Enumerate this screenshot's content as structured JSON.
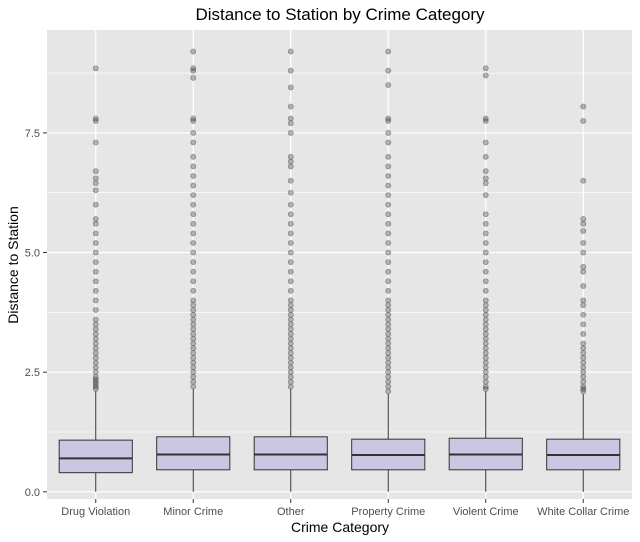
{
  "chart_data": {
    "type": "boxplot",
    "title": "Distance to Station by Crime Category",
    "xlabel": "Crime Category",
    "ylabel": "Distance to Station",
    "ylim": [
      -0.15,
      9.65
    ],
    "yticks": [
      0.0,
      2.5,
      5.0,
      7.5
    ],
    "ytick_labels": [
      "0.0",
      "2.5",
      "5.0",
      "7.5"
    ],
    "grid": true,
    "colors": {
      "panel": "#e6e6e6",
      "grid": "#ffffff",
      "box_fill": "#cbc7e3",
      "box_stroke": "#333333",
      "outlier": "#333333"
    },
    "categories": [
      "Drug Violation",
      "Minor Crime",
      "Other",
      "Property Crime",
      "Violent Crime",
      "White Collar Crime"
    ],
    "boxes": [
      {
        "category": "Drug Violation",
        "whisker_low": 0.0,
        "q1": 0.4,
        "median": 0.7,
        "q3": 1.08,
        "whisker_high": 2.1,
        "outliers": [
          2.15,
          2.2,
          2.25,
          2.3,
          2.35,
          2.4,
          2.5,
          2.6,
          2.7,
          2.8,
          2.9,
          3.0,
          3.1,
          3.2,
          3.3,
          3.4,
          3.5,
          3.6,
          3.8,
          4.0,
          4.2,
          4.4,
          4.6,
          4.8,
          5.0,
          5.2,
          5.4,
          5.6,
          5.7,
          6.0,
          6.3,
          6.45,
          6.55,
          6.7,
          7.3,
          7.75,
          7.8,
          8.85
        ]
      },
      {
        "category": "Minor Crime",
        "whisker_low": 0.0,
        "q1": 0.46,
        "median": 0.78,
        "q3": 1.15,
        "whisker_high": 2.15,
        "outliers": [
          2.2,
          2.3,
          2.4,
          2.5,
          2.6,
          2.7,
          2.8,
          2.9,
          3.0,
          3.1,
          3.2,
          3.3,
          3.4,
          3.5,
          3.6,
          3.7,
          3.8,
          3.9,
          4.0,
          4.2,
          4.4,
          4.6,
          4.8,
          5.0,
          5.2,
          5.4,
          5.6,
          5.8,
          6.0,
          6.2,
          6.4,
          6.6,
          6.8,
          7.0,
          7.3,
          7.5,
          7.75,
          7.8,
          8.65,
          8.8,
          8.85,
          9.2
        ]
      },
      {
        "category": "Other",
        "whisker_low": 0.0,
        "q1": 0.46,
        "median": 0.78,
        "q3": 1.15,
        "whisker_high": 2.15,
        "outliers": [
          2.2,
          2.3,
          2.4,
          2.5,
          2.6,
          2.7,
          2.8,
          2.9,
          3.0,
          3.1,
          3.2,
          3.3,
          3.4,
          3.5,
          3.6,
          3.7,
          3.8,
          3.9,
          4.0,
          4.2,
          4.4,
          4.6,
          4.8,
          5.0,
          5.2,
          5.4,
          5.6,
          5.8,
          6.0,
          6.25,
          6.5,
          6.8,
          6.9,
          7.0,
          7.5,
          7.7,
          7.8,
          8.05,
          8.45,
          8.8,
          9.2
        ]
      },
      {
        "category": "Property Crime",
        "whisker_low": 0.0,
        "q1": 0.46,
        "median": 0.77,
        "q3": 1.1,
        "whisker_high": 2.05,
        "outliers": [
          2.1,
          2.2,
          2.3,
          2.4,
          2.5,
          2.6,
          2.7,
          2.8,
          2.9,
          3.0,
          3.1,
          3.2,
          3.3,
          3.4,
          3.5,
          3.6,
          3.7,
          3.8,
          3.9,
          4.0,
          4.2,
          4.4,
          4.6,
          4.8,
          5.0,
          5.2,
          5.4,
          5.6,
          5.8,
          6.0,
          6.2,
          6.4,
          6.6,
          6.8,
          7.0,
          7.3,
          7.5,
          7.75,
          7.8,
          8.5,
          8.8,
          9.2
        ]
      },
      {
        "category": "Violent Crime",
        "whisker_low": 0.0,
        "q1": 0.46,
        "median": 0.78,
        "q3": 1.12,
        "whisker_high": 2.1,
        "outliers": [
          2.15,
          2.2,
          2.3,
          2.4,
          2.5,
          2.6,
          2.7,
          2.8,
          2.9,
          3.0,
          3.1,
          3.2,
          3.3,
          3.4,
          3.5,
          3.6,
          3.7,
          3.8,
          3.9,
          4.0,
          4.2,
          4.4,
          4.6,
          4.8,
          5.0,
          5.2,
          5.4,
          5.6,
          5.8,
          6.2,
          6.45,
          6.55,
          6.7,
          7.0,
          7.3,
          7.75,
          7.8,
          8.7,
          8.85
        ]
      },
      {
        "category": "White Collar Crime",
        "whisker_low": 0.0,
        "q1": 0.46,
        "median": 0.77,
        "q3": 1.1,
        "whisker_high": 2.05,
        "outliers": [
          2.1,
          2.15,
          2.2,
          2.3,
          2.4,
          2.5,
          2.6,
          2.7,
          2.8,
          2.9,
          3.0,
          3.1,
          3.3,
          3.5,
          3.7,
          3.9,
          4.0,
          4.3,
          4.6,
          4.7,
          5.0,
          5.2,
          5.45,
          5.6,
          5.7,
          6.5,
          7.75,
          8.05
        ]
      }
    ]
  }
}
